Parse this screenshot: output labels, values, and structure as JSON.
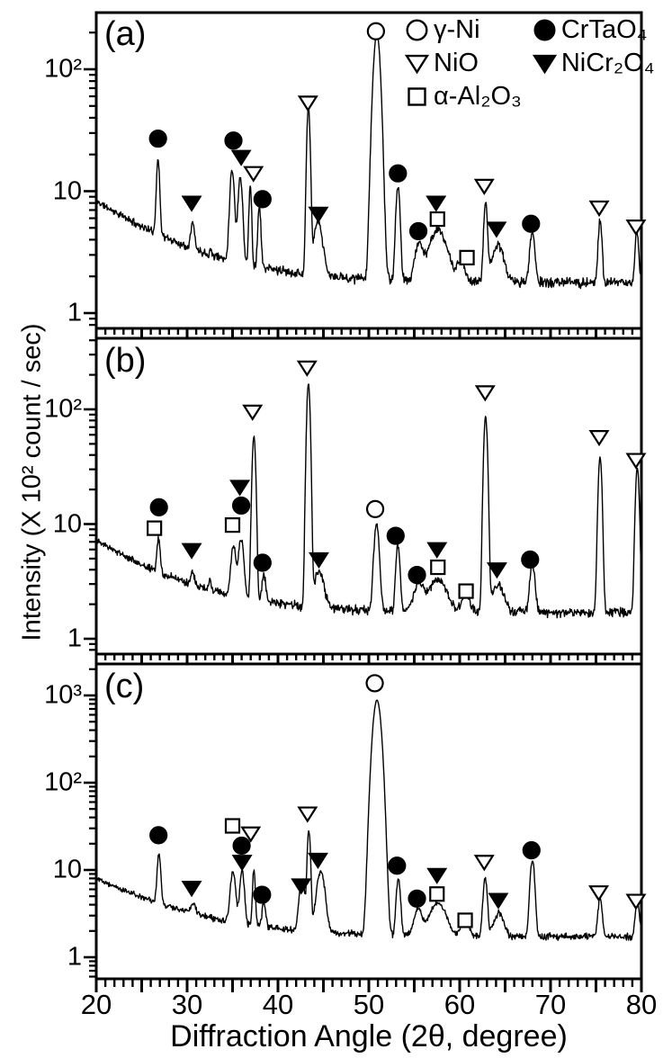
{
  "figure": {
    "background": "#ffffff",
    "ink": "#000000",
    "y_axis_title": "Intensity (X 10² count / sec)",
    "x_axis_title": "Diffraction Angle (2θ,  degree)"
  },
  "x_axis": {
    "min": 20,
    "max": 80,
    "tick_labels": [
      "20",
      "30",
      "40",
      "50",
      "60",
      "70",
      "80"
    ],
    "tick_values": [
      20,
      30,
      40,
      50,
      60,
      70,
      80
    ],
    "minor_step": 1,
    "medium_step": 5
  },
  "legend": {
    "items": [
      {
        "symbol": "circle-open",
        "label": "γ-Ni"
      },
      {
        "symbol": "circle-filled",
        "label": "CrTaO₄"
      },
      {
        "symbol": "triangle-open",
        "label": "NiO"
      },
      {
        "symbol": "triangle-filled",
        "label": "NiCr₂O₄"
      },
      {
        "symbol": "square-open",
        "label": "α-Al₂O₃"
      }
    ]
  },
  "chart_data": [
    {
      "type": "line",
      "label": "(a)",
      "xlabel": "Diffraction Angle (2θ, degree)",
      "ylabel": "Intensity (X 10² count / sec)",
      "xlim": [
        20,
        80
      ],
      "y_scale": "log",
      "grid": false,
      "y_ticks": [
        {
          "label": "10²",
          "value": 100
        },
        {
          "label": "10",
          "value": 10
        },
        {
          "label": "1",
          "value": 1
        }
      ],
      "baseline": {
        "start": 8.3,
        "floor": 1.78,
        "decay": 7.6
      },
      "peaks": [
        [
          26.8,
          18,
          0.16
        ],
        [
          30.6,
          5.5,
          0.2
        ],
        [
          32.6,
          3.2,
          0.12
        ],
        [
          34.95,
          15,
          0.22
        ],
        [
          35.85,
          13,
          0.22
        ],
        [
          36.95,
          11,
          0.13
        ],
        [
          37.95,
          7.5,
          0.15
        ],
        [
          43.35,
          48,
          0.16
        ],
        [
          44.4,
          5.5,
          0.45
        ],
        [
          50.88,
          195,
          0.33
        ],
        [
          53.2,
          11,
          0.2
        ],
        [
          55.5,
          3.6,
          0.4
        ],
        [
          57.6,
          4.8,
          0.9
        ],
        [
          60.15,
          2.6,
          0.4
        ],
        [
          62.85,
          8,
          0.18
        ],
        [
          64.2,
          3.6,
          0.6
        ],
        [
          68.0,
          4.6,
          0.25
        ],
        [
          75.45,
          5.8,
          0.18
        ],
        [
          79.5,
          4.6,
          0.18
        ]
      ],
      "markers": [
        [
          "circle-open",
          50.78,
          205
        ],
        [
          "circle-filled",
          26.8,
          27
        ],
        [
          "triangle-filled",
          30.5,
          8.0
        ],
        [
          "circle-filled",
          35.1,
          26
        ],
        [
          "triangle-filled",
          35.95,
          19
        ],
        [
          "triangle-open",
          37.3,
          14
        ],
        [
          "circle-filled",
          38.3,
          8.6
        ],
        [
          "triangle-open",
          43.3,
          53
        ],
        [
          "triangle-filled",
          44.45,
          6.5
        ],
        [
          "circle-filled",
          53.2,
          14
        ],
        [
          "circle-filled",
          55.45,
          4.7
        ],
        [
          "triangle-filled",
          57.4,
          8.0
        ],
        [
          "square-open",
          57.55,
          5.9
        ],
        [
          "square-open",
          60.8,
          2.85
        ],
        [
          "triangle-open",
          62.7,
          11
        ],
        [
          "triangle-filled",
          64.05,
          4.9
        ],
        [
          "circle-filled",
          67.85,
          5.4
        ],
        [
          "triangle-open",
          75.35,
          7.3
        ],
        [
          "triangle-open",
          79.4,
          5.1
        ]
      ]
    },
    {
      "type": "line",
      "label": "(b)",
      "xlabel": "Diffraction Angle (2θ, degree)",
      "ylabel": "Intensity (X 10² count / sec)",
      "xlim": [
        20,
        80
      ],
      "y_scale": "log",
      "grid": false,
      "y_ticks": [
        {
          "label": "10²",
          "value": 100
        },
        {
          "label": "10",
          "value": 10
        },
        {
          "label": "1",
          "value": 1
        }
      ],
      "baseline": {
        "start": 7.2,
        "floor": 1.7,
        "decay": 7.2
      },
      "peaks": [
        [
          26.85,
          7.5,
          0.16
        ],
        [
          30.6,
          3.8,
          0.2
        ],
        [
          32.5,
          3.3,
          0.12
        ],
        [
          35.1,
          6.5,
          0.25
        ],
        [
          35.95,
          7.5,
          0.25
        ],
        [
          37.35,
          58,
          0.17
        ],
        [
          38.45,
          3.6,
          0.2
        ],
        [
          43.35,
          165,
          0.17
        ],
        [
          44.5,
          3.8,
          0.5
        ],
        [
          50.85,
          10,
          0.25
        ],
        [
          53.2,
          6.5,
          0.2
        ],
        [
          55.5,
          3.0,
          0.5
        ],
        [
          57.6,
          3.3,
          0.9
        ],
        [
          60.7,
          2.5,
          0.4
        ],
        [
          62.85,
          86,
          0.18
        ],
        [
          64.2,
          3.0,
          0.6
        ],
        [
          68.0,
          4.5,
          0.25
        ],
        [
          75.45,
          38,
          0.18
        ],
        [
          79.55,
          31,
          0.18
        ]
      ],
      "markers": [
        [
          "square-open",
          26.4,
          9.2
        ],
        [
          "circle-filled",
          26.9,
          14
        ],
        [
          "triangle-filled",
          30.5,
          5.9
        ],
        [
          "square-open",
          35.0,
          9.8
        ],
        [
          "triangle-filled",
          35.8,
          21
        ],
        [
          "circle-filled",
          35.95,
          14.5
        ],
        [
          "triangle-open",
          37.2,
          95
        ],
        [
          "circle-filled",
          38.3,
          4.6
        ],
        [
          "triangle-open",
          43.2,
          230
        ],
        [
          "triangle-filled",
          44.5,
          4.9
        ],
        [
          "circle-open",
          50.7,
          13.5
        ],
        [
          "circle-filled",
          52.95,
          7.9
        ],
        [
          "circle-filled",
          55.3,
          3.6
        ],
        [
          "triangle-filled",
          57.5,
          6.0
        ],
        [
          "square-open",
          57.6,
          4.2
        ],
        [
          "square-open",
          60.7,
          2.6
        ],
        [
          "triangle-open",
          62.8,
          140
        ],
        [
          "triangle-filled",
          64.1,
          4.0
        ],
        [
          "circle-filled",
          67.75,
          4.9
        ],
        [
          "triangle-open",
          75.35,
          57
        ],
        [
          "triangle-open",
          79.4,
          36
        ]
      ]
    },
    {
      "type": "line",
      "label": "(c)",
      "xlabel": "Diffraction Angle (2θ, degree)",
      "ylabel": "Intensity (X 10² count / sec)",
      "xlim": [
        20,
        80
      ],
      "y_scale": "log",
      "grid": false,
      "y_ticks": [
        {
          "label": "10³",
          "value": 1000
        },
        {
          "label": "10²",
          "value": 100
        },
        {
          "label": "10",
          "value": 10
        },
        {
          "label": "1",
          "value": 1
        }
      ],
      "baseline": {
        "start": 8.0,
        "floor": 1.72,
        "decay": 7.4
      },
      "peaks": [
        [
          26.9,
          15,
          0.17
        ],
        [
          30.7,
          4.2,
          0.22
        ],
        [
          35.05,
          9.5,
          0.25
        ],
        [
          36.05,
          9.5,
          0.22
        ],
        [
          37.35,
          10,
          0.13
        ],
        [
          38.45,
          4.2,
          0.18
        ],
        [
          42.65,
          7.5,
          0.28
        ],
        [
          43.4,
          28,
          0.15
        ],
        [
          44.7,
          9.5,
          0.4
        ],
        [
          50.9,
          880,
          0.38
        ],
        [
          53.25,
          8,
          0.2
        ],
        [
          55.4,
          3.6,
          0.4
        ],
        [
          57.6,
          4.2,
          0.8
        ],
        [
          60.6,
          2.6,
          0.4
        ],
        [
          62.8,
          8,
          0.2
        ],
        [
          64.3,
          3.2,
          0.5
        ],
        [
          68.0,
          13,
          0.22
        ],
        [
          75.45,
          4.8,
          0.2
        ],
        [
          79.55,
          4.6,
          0.2
        ]
      ],
      "markers": [
        [
          "circle-filled",
          26.85,
          25
        ],
        [
          "triangle-filled",
          30.5,
          6.2
        ],
        [
          "square-open",
          35.0,
          32
        ],
        [
          "triangle-open",
          37.0,
          26
        ],
        [
          "circle-filled",
          36.0,
          19
        ],
        [
          "triangle-filled",
          36.05,
          12.3
        ],
        [
          "circle-filled",
          38.25,
          5.2
        ],
        [
          "triangle-filled",
          42.55,
          6.6
        ],
        [
          "triangle-open",
          43.25,
          44
        ],
        [
          "triangle-filled",
          44.4,
          13
        ],
        [
          "circle-open",
          50.65,
          1380
        ],
        [
          "circle-filled",
          53.1,
          11.2
        ],
        [
          "circle-filled",
          55.3,
          4.7
        ],
        [
          "triangle-filled",
          57.5,
          8.7
        ],
        [
          "square-open",
          57.5,
          5.3
        ],
        [
          "square-open",
          60.6,
          2.65
        ],
        [
          "triangle-open",
          62.7,
          12.3
        ],
        [
          "triangle-filled",
          64.25,
          4.5
        ],
        [
          "circle-filled",
          67.9,
          16.8
        ],
        [
          "triangle-open",
          75.3,
          5.5
        ],
        [
          "triangle-open",
          79.4,
          4.4
        ]
      ]
    }
  ]
}
